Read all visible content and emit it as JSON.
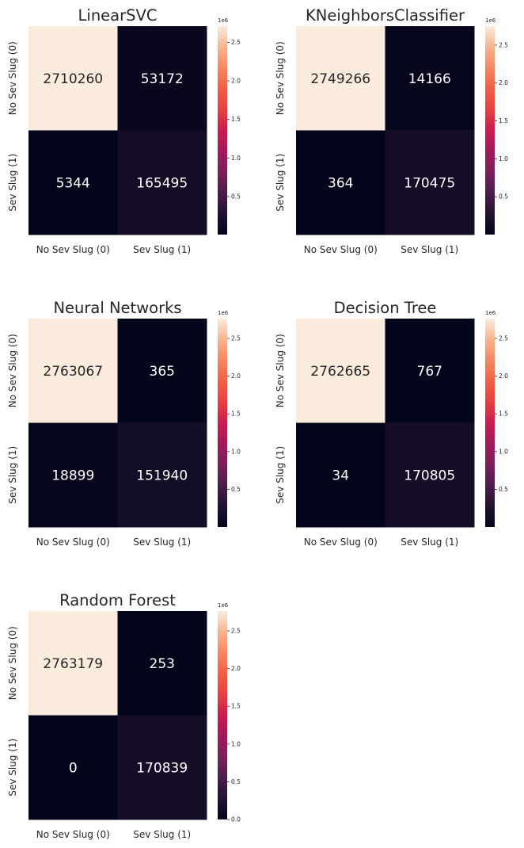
{
  "chart_data": [
    {
      "type": "heatmap",
      "title": "LinearSVC",
      "x_categories": [
        "No Sev Slug (0)",
        "Sev Slug (1)"
      ],
      "y_categories": [
        "No Sev Slug (0)",
        "Sev Slug (1)"
      ],
      "values": [
        [
          2710260,
          53172
        ],
        [
          5344,
          165495
        ]
      ],
      "colorbar": {
        "scale_label": "1e6",
        "ticks": [
          0.5,
          1.0,
          1.5,
          2.0,
          2.5
        ],
        "tick_labels": [
          "0.5",
          "1.0",
          "1.5",
          "2.0",
          "2.5"
        ],
        "min": 5344,
        "max": 2710260
      }
    },
    {
      "type": "heatmap",
      "title": "KNeighborsClassifier",
      "x_categories": [
        "No Sev Slug (0)",
        "Sev Slug (1)"
      ],
      "y_categories": [
        "No Sev Slug (0)",
        "Sev Slug (1)"
      ],
      "values": [
        [
          2749266,
          14166
        ],
        [
          364,
          170475
        ]
      ],
      "colorbar": {
        "scale_label": "1e6",
        "ticks": [
          0.5,
          1.0,
          1.5,
          2.0,
          2.5
        ],
        "tick_labels": [
          "0.5",
          "1.0",
          "1.5",
          "2.0",
          "2.5"
        ],
        "min": 364,
        "max": 2749266
      }
    },
    {
      "type": "heatmap",
      "title": "Neural Networks",
      "x_categories": [
        "No Sev Slug (0)",
        "Sev Slug (1)"
      ],
      "y_categories": [
        "No Sev Slug (0)",
        "Sev Slug (1)"
      ],
      "values": [
        [
          2763067,
          365
        ],
        [
          18899,
          151940
        ]
      ],
      "colorbar": {
        "scale_label": "1e6",
        "ticks": [
          0.5,
          1.0,
          1.5,
          2.0,
          2.5
        ],
        "tick_labels": [
          "0.5",
          "1.0",
          "1.5",
          "2.0",
          "2.5"
        ],
        "min": 365,
        "max": 2763067
      }
    },
    {
      "type": "heatmap",
      "title": "Decision Tree",
      "x_categories": [
        "No Sev Slug (0)",
        "Sev Slug (1)"
      ],
      "y_categories": [
        "No Sev Slug (0)",
        "Sev Slug (1)"
      ],
      "values": [
        [
          2762665,
          767
        ],
        [
          34,
          170805
        ]
      ],
      "colorbar": {
        "scale_label": "1e6",
        "ticks": [
          0.5,
          1.0,
          1.5,
          2.0,
          2.5
        ],
        "tick_labels": [
          "0.5",
          "1.0",
          "1.5",
          "2.0",
          "2.5"
        ],
        "min": 34,
        "max": 2762665
      }
    },
    {
      "type": "heatmap",
      "title": "Random Forest",
      "x_categories": [
        "No Sev Slug (0)",
        "Sev Slug (1)"
      ],
      "y_categories": [
        "No Sev Slug (0)",
        "Sev Slug (1)"
      ],
      "values": [
        [
          2763179,
          253
        ],
        [
          0,
          170839
        ]
      ],
      "colorbar": {
        "scale_label": "1e6",
        "ticks": [
          0.0,
          0.5,
          1.0,
          1.5,
          2.0,
          2.5
        ],
        "tick_labels": [
          "0.0",
          "0.5",
          "1.0",
          "1.5",
          "2.0",
          "2.5"
        ],
        "min": 0,
        "max": 2763179
      }
    }
  ],
  "colormap": {
    "name": "rocket",
    "stops": [
      "#03051a",
      "#221331",
      "#4c1d4b",
      "#7a1f5b",
      "#a11a5b",
      "#cb1b4f",
      "#e83f3f",
      "#f06043",
      "#f58860",
      "#f6b48e",
      "#faebdd"
    ]
  }
}
